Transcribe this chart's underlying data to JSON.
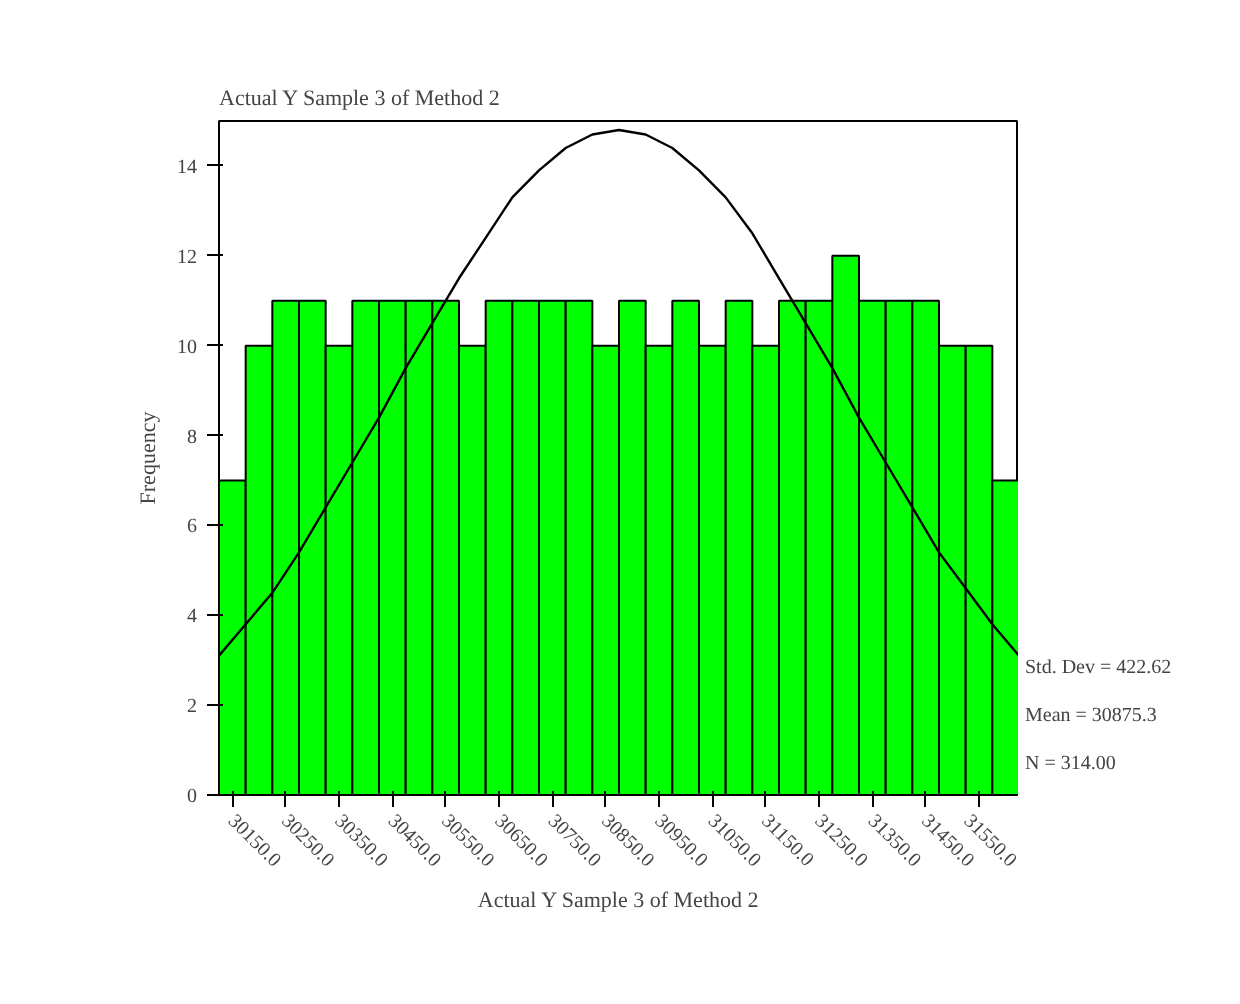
{
  "chart_data": {
    "type": "histogram",
    "title": "Actual Y Sample 3 of Method 2",
    "xlabel": "Actual Y Sample 3 of Method 2",
    "ylabel": "Frequency",
    "bins": [
      30125,
      30175,
      30225,
      30275,
      30325,
      30375,
      30425,
      30475,
      30525,
      30575,
      30625,
      30675,
      30725,
      30775,
      30825,
      30875,
      30925,
      30975,
      31025,
      31075,
      31125,
      31175,
      31225,
      31275,
      31325,
      31375,
      31425,
      31475,
      31525,
      31575,
      31625
    ],
    "values": [
      7,
      10,
      11,
      11,
      10,
      11,
      11,
      11,
      11,
      10,
      11,
      11,
      11,
      11,
      10,
      11,
      10,
      11,
      10,
      11,
      10,
      11,
      11,
      12,
      11,
      11,
      11,
      10,
      10,
      7
    ],
    "color": "#00ff00",
    "series": [
      {
        "type": "line",
        "color": "#000000",
        "x": [
          30125,
          30175,
          30225,
          30275,
          30325,
          30375,
          30425,
          30475,
          30525,
          30575,
          30625,
          30675,
          30725,
          30775,
          30825,
          30875,
          30925,
          30975,
          31025,
          31075,
          31125,
          31175,
          31225,
          31275,
          31325,
          31375,
          31425,
          31475,
          31525,
          31575,
          31625
        ],
        "values": [
          3.1,
          3.8,
          4.5,
          5.4,
          6.4,
          7.4,
          8.4,
          9.5,
          10.5,
          11.5,
          12.4,
          13.3,
          13.9,
          14.4,
          14.7,
          14.8,
          14.7,
          14.4,
          13.9,
          13.3,
          12.5,
          11.5,
          10.5,
          9.5,
          8.4,
          7.4,
          6.4,
          5.4,
          4.6,
          3.8,
          3.1
        ]
      }
    ],
    "xlim": [
      30125,
      31625
    ],
    "ylim": [
      0,
      15
    ],
    "xticks": [
      {
        "value": 30150,
        "label": "30150.0"
      },
      {
        "value": 30250,
        "label": "30250.0"
      },
      {
        "value": 30350,
        "label": "30350.0"
      },
      {
        "value": 30450,
        "label": "30450.0"
      },
      {
        "value": 30550,
        "label": "30550.0"
      },
      {
        "value": 30650,
        "label": "30650.0"
      },
      {
        "value": 30750,
        "label": "30750.0"
      },
      {
        "value": 30850,
        "label": "30850.0"
      },
      {
        "value": 30950,
        "label": "30950.0"
      },
      {
        "value": 31050,
        "label": "31050.0"
      },
      {
        "value": 31150,
        "label": "31150.0"
      },
      {
        "value": 31250,
        "label": "31250.0"
      },
      {
        "value": 31350,
        "label": "31350.0"
      },
      {
        "value": 31450,
        "label": "31450.0"
      },
      {
        "value": 31550,
        "label": "31550.0"
      }
    ],
    "yticks": [
      0,
      2,
      4,
      6,
      8,
      10,
      12,
      14
    ],
    "grid": false,
    "annotations": [
      "Std. Dev = 422.62",
      "Mean = 30875.3",
      "N = 314.00"
    ]
  }
}
